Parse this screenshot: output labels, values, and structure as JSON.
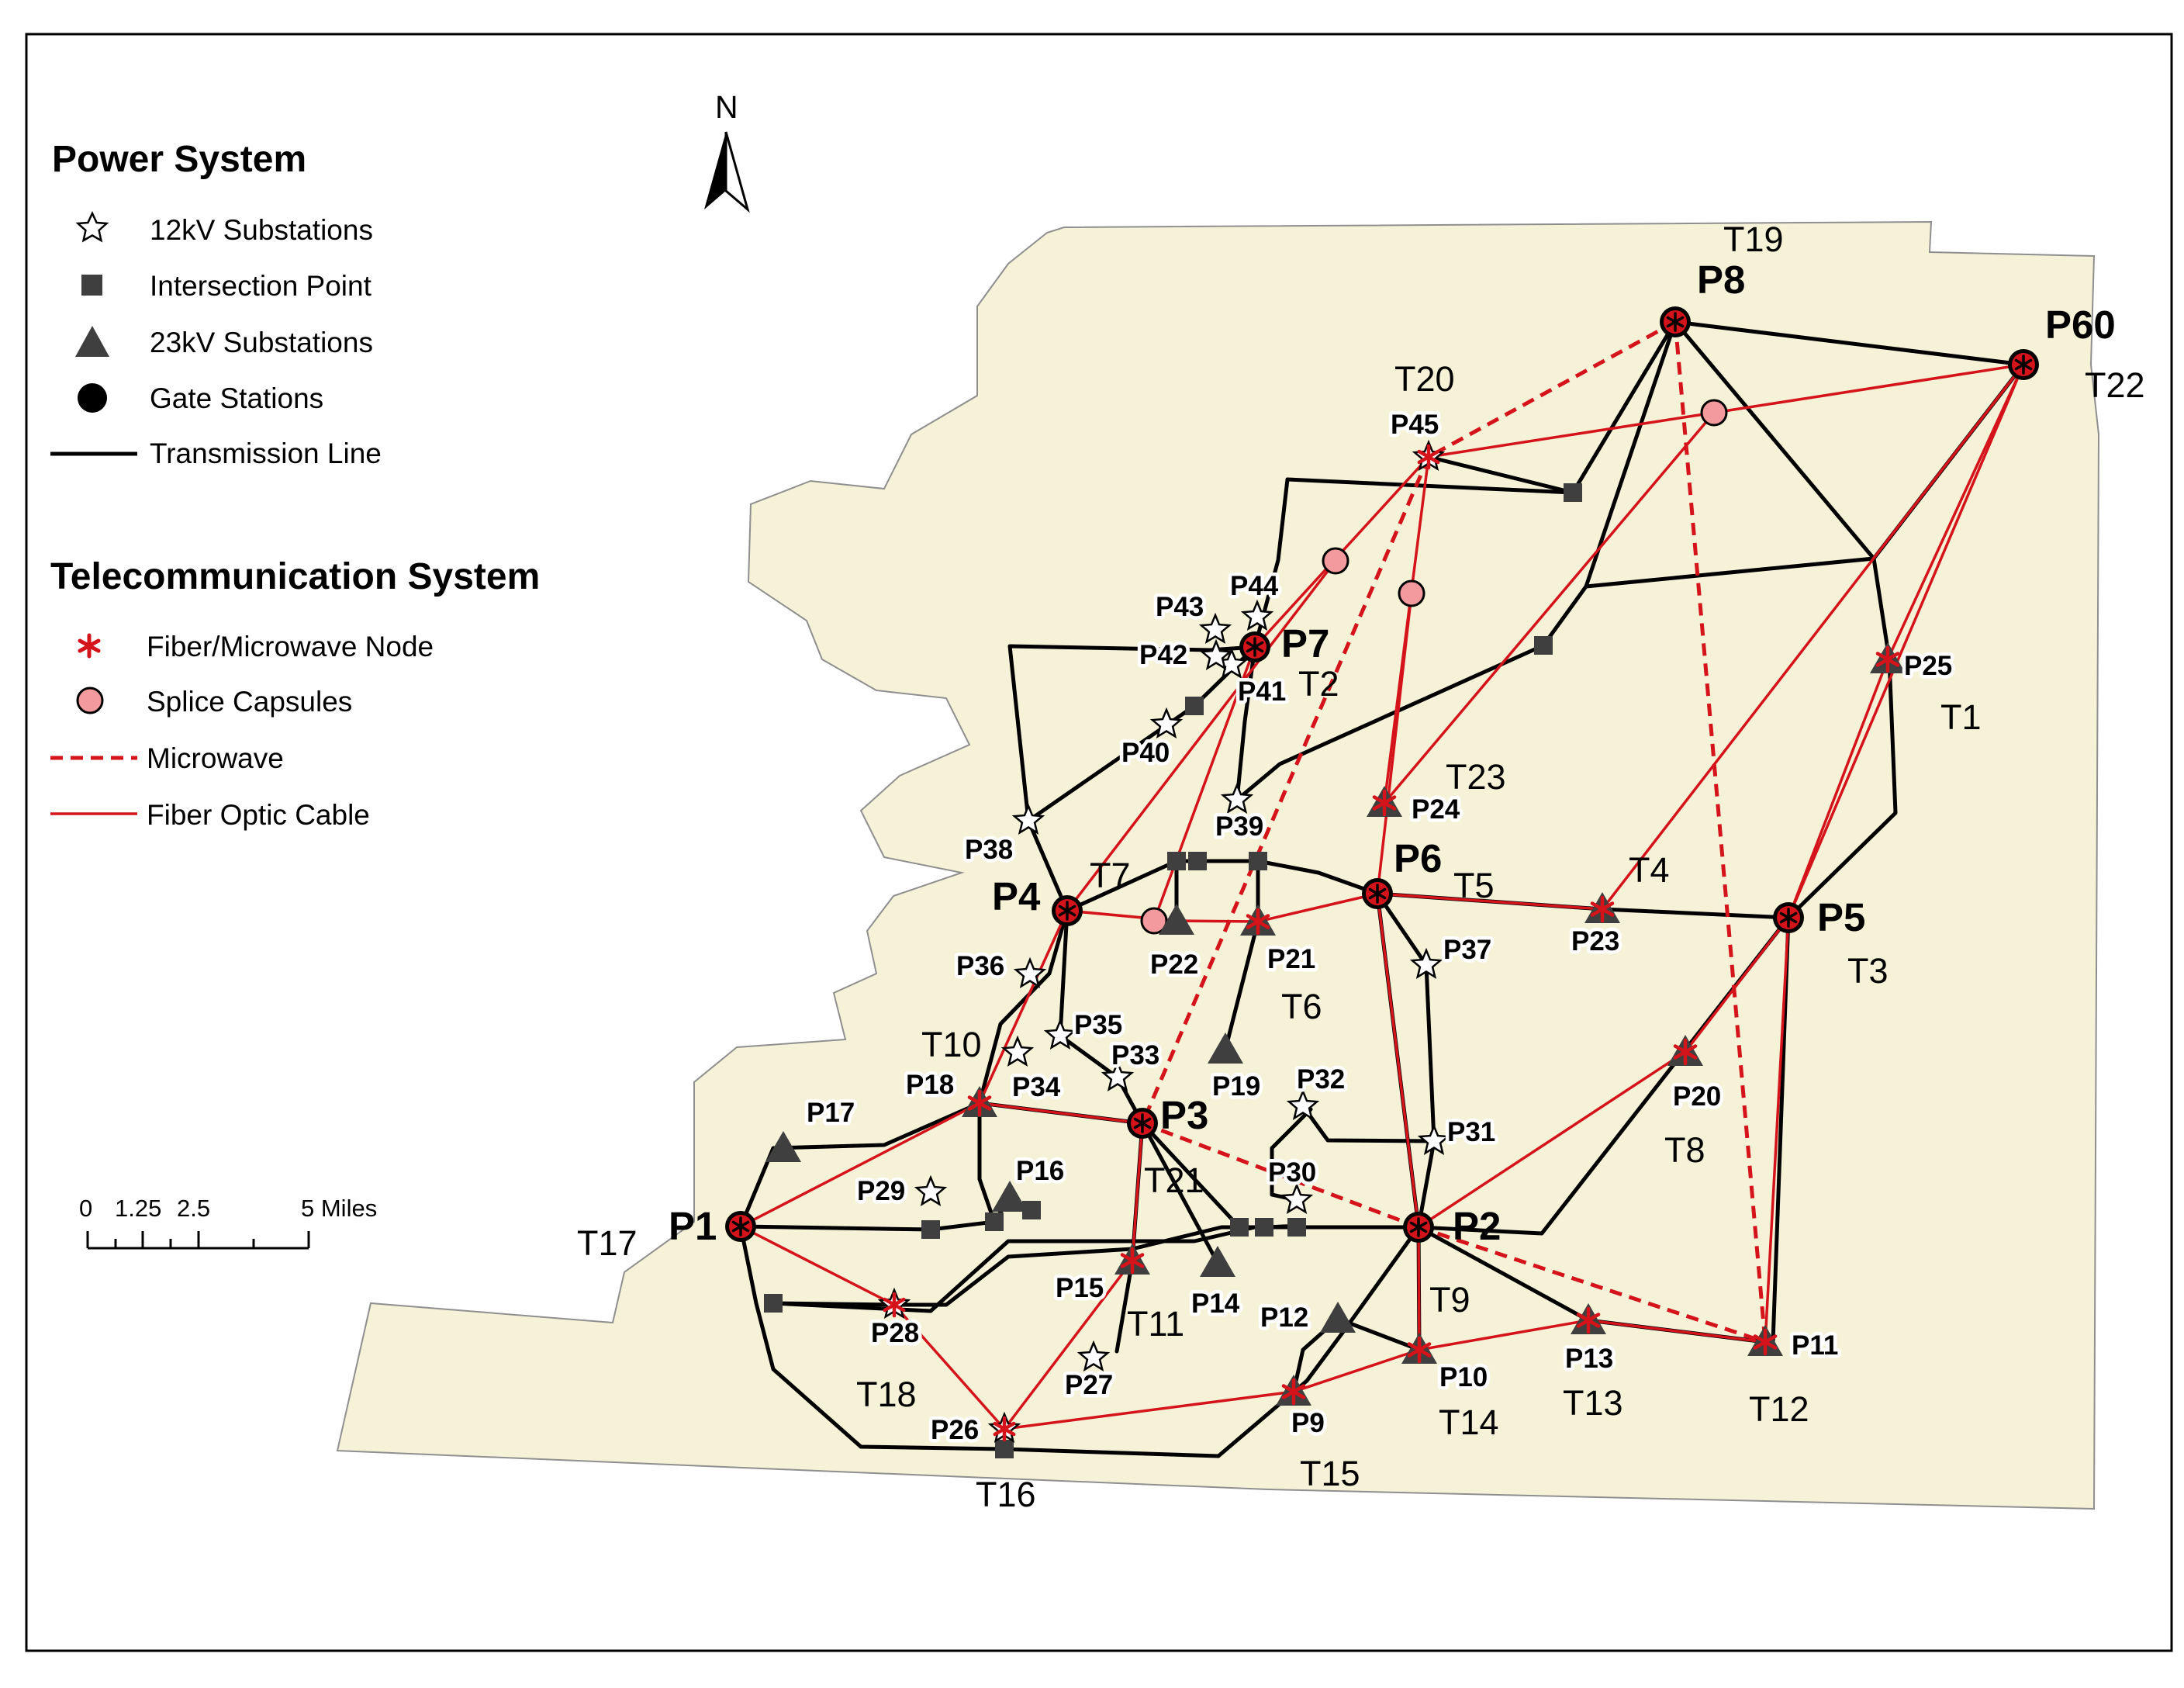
{
  "north_label": "N",
  "legend": {
    "power": {
      "heading": "Power System",
      "items": [
        {
          "symbol": "star",
          "label": "12kV Substations"
        },
        {
          "symbol": "square",
          "label": "Intersection Point"
        },
        {
          "symbol": "triangle",
          "label": "23kV Substations"
        },
        {
          "symbol": "circle",
          "label": "Gate Stations"
        },
        {
          "symbol": "line",
          "label": "Transmission Line"
        }
      ]
    },
    "telecom": {
      "heading": "Telecommunication System",
      "items": [
        {
          "symbol": "asterisk",
          "label": "Fiber/Microwave Node"
        },
        {
          "symbol": "pink-circle",
          "label": "Splice Capsules"
        },
        {
          "symbol": "dashed-line",
          "label": "Microwave"
        },
        {
          "symbol": "red-line",
          "label": "Fiber Optic Cable"
        }
      ]
    }
  },
  "scale_bar": {
    "ticks": [
      "0",
      "1.25",
      "2.5",
      "5 Miles"
    ]
  },
  "colors": {
    "land": "#f5f2d8",
    "transmission": "#000000",
    "fiber": "#d4131a",
    "microwave": "#d4131a",
    "splice": "#f29a9e",
    "marker": "#3f3f3f",
    "gate": "#000000"
  },
  "gate_labels": [
    "P1",
    "P2",
    "P3",
    "P4",
    "P5",
    "P6",
    "P7",
    "P8",
    "P60"
  ],
  "substation_labels": [
    "P9",
    "P10",
    "P11",
    "P12",
    "P13",
    "P14",
    "P15",
    "P16",
    "P17",
    "P18",
    "P19",
    "P20",
    "P21",
    "P22",
    "P23",
    "P24",
    "P25",
    "P26",
    "P27",
    "P28",
    "P29",
    "P30",
    "P31",
    "P32",
    "P33",
    "P34",
    "P35",
    "P36",
    "P37",
    "P38",
    "P39",
    "P40",
    "P41",
    "P42",
    "P43",
    "P44",
    "P45"
  ],
  "t_labels": [
    "T1",
    "T2",
    "T3",
    "T4",
    "T5",
    "T6",
    "T7",
    "T8",
    "T9",
    "T10",
    "T11",
    "T12",
    "T13",
    "T14",
    "T15",
    "T16",
    "T17",
    "T18",
    "T19",
    "T20",
    "T21",
    "T22",
    "T23"
  ]
}
